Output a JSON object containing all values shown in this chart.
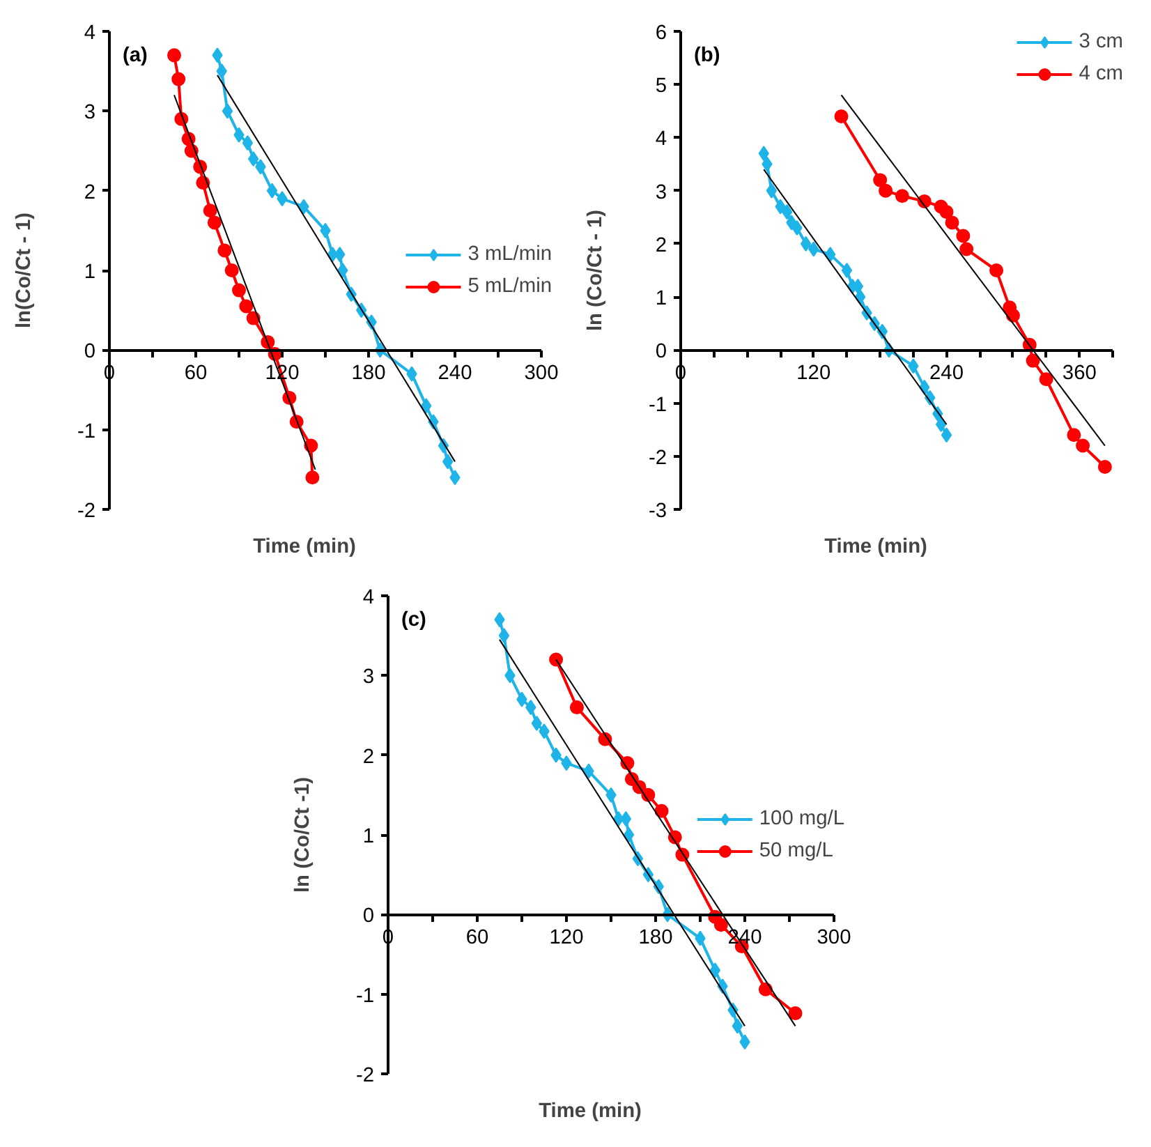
{
  "chart_data": [
    {
      "type": "line",
      "title": "(a)",
      "xlabel": "Time (min)",
      "ylabel": "ln(Co/Ct - 1)",
      "xlim": [
        0,
        300
      ],
      "ylim": [
        -2,
        4
      ],
      "xticks": [
        0,
        {
          "value": 30,
          "label": null
        },
        60,
        {
          "value": 90,
          "label": null
        },
        120,
        {
          "value": 150,
          "label": null
        },
        180,
        {
          "value": 210,
          "label": null
        },
        240,
        {
          "value": 270,
          "label": null
        },
        300
      ],
      "yticks": [
        -2,
        -1,
        0,
        1,
        2,
        3,
        4
      ],
      "grid": false,
      "legend": "right",
      "series": [
        {
          "name": "3 mL/min",
          "color": "#1fb4e8",
          "marker": "diamond",
          "x": [
            75,
            78,
            82,
            90,
            96,
            100,
            105,
            113,
            120,
            135,
            150,
            155,
            160,
            162,
            168,
            175,
            182,
            188,
            210,
            220,
            225,
            232,
            235,
            240
          ],
          "values": [
            3.7,
            3.5,
            3.0,
            2.7,
            2.6,
            2.4,
            2.3,
            2.0,
            1.9,
            1.8,
            1.5,
            1.2,
            1.2,
            1.0,
            0.7,
            0.5,
            0.35,
            0.0,
            -0.3,
            -0.7,
            -0.9,
            -1.2,
            -1.4,
            -1.6
          ]
        },
        {
          "name": "5 mL/min",
          "color": "#ff0000",
          "marker": "circle",
          "x": [
            45,
            48,
            50,
            55,
            57,
            63,
            65,
            70,
            73,
            80,
            85,
            90,
            95,
            100,
            110,
            115,
            125,
            130,
            140,
            141
          ],
          "values": [
            3.7,
            3.4,
            2.9,
            2.65,
            2.5,
            2.3,
            2.1,
            1.75,
            1.6,
            1.25,
            1.0,
            0.75,
            0.55,
            0.4,
            0.1,
            -0.05,
            -0.6,
            -0.9,
            -1.2,
            -1.6
          ]
        },
        {
          "color": "#000000",
          "marker": "none",
          "x": [
            75,
            240
          ],
          "values": [
            3.45,
            -1.4
          ]
        },
        {
          "color": "#000000",
          "marker": "none",
          "x": [
            45,
            143
          ],
          "values": [
            3.2,
            -1.5
          ]
        }
      ]
    },
    {
      "type": "line",
      "title": "(b)",
      "xlabel": "Time (min)",
      "ylabel": "ln (Co/Ct - 1)",
      "xlim": [
        0,
        390
      ],
      "ylim": [
        -3,
        6
      ],
      "xticks": [
        0,
        {
          "value": 30,
          "label": null
        },
        {
          "value": 60,
          "label": null
        },
        {
          "value": 90,
          "label": null
        },
        120,
        {
          "value": 150,
          "label": null
        },
        {
          "value": 180,
          "label": null
        },
        {
          "value": 210,
          "label": null
        },
        240,
        {
          "value": 270,
          "label": null
        },
        {
          "value": 300,
          "label": null
        },
        {
          "value": 330,
          "label": null
        },
        360,
        {
          "value": 390,
          "label": null
        }
      ],
      "yticks": [
        -3,
        -2,
        -1,
        0,
        1,
        2,
        3,
        4,
        5,
        6
      ],
      "grid": false,
      "legend": "top right",
      "series": [
        {
          "name": "3 cm",
          "color": "#1fb4e8",
          "marker": "diamond",
          "x": [
            75,
            78,
            82,
            90,
            96,
            100,
            105,
            113,
            120,
            135,
            150,
            155,
            160,
            162,
            168,
            175,
            182,
            188,
            210,
            220,
            225,
            232,
            235,
            240
          ],
          "values": [
            3.7,
            3.5,
            3.0,
            2.7,
            2.6,
            2.4,
            2.3,
            2.0,
            1.9,
            1.8,
            1.5,
            1.2,
            1.2,
            1.0,
            0.7,
            0.5,
            0.35,
            0.0,
            -0.3,
            -0.7,
            -0.9,
            -1.2,
            -1.4,
            -1.6
          ]
        },
        {
          "name": "4 cm",
          "color": "#ff0000",
          "marker": "circle",
          "x": [
            145,
            180,
            185,
            200,
            220,
            235,
            240,
            245,
            255,
            258,
            285,
            297,
            300,
            315,
            318,
            330,
            355,
            363,
            383
          ],
          "values": [
            4.4,
            3.2,
            3.0,
            2.9,
            2.8,
            2.7,
            2.6,
            2.4,
            2.15,
            1.9,
            1.5,
            0.8,
            0.65,
            0.1,
            -0.2,
            -0.55,
            -1.6,
            -1.8,
            -2.2
          ]
        },
        {
          "color": "#000000",
          "marker": "none",
          "x": [
            75,
            240
          ],
          "values": [
            3.4,
            -1.4
          ]
        },
        {
          "color": "#000000",
          "marker": "none",
          "x": [
            145,
            383
          ],
          "values": [
            4.8,
            -1.8
          ]
        }
      ]
    },
    {
      "type": "line",
      "title": "(c)",
      "xlabel": "Time (min)",
      "ylabel": "ln (Co/Ct -1)",
      "xlim": [
        0,
        300
      ],
      "ylim": [
        -2,
        4
      ],
      "xticks": [
        0,
        {
          "value": 30,
          "label": null
        },
        60,
        {
          "value": 90,
          "label": null
        },
        120,
        {
          "value": 150,
          "label": null
        },
        180,
        {
          "value": 210,
          "label": null
        },
        240,
        {
          "value": 270,
          "label": null
        },
        300
      ],
      "yticks": [
        -2,
        -1,
        0,
        1,
        2,
        3,
        4
      ],
      "grid": false,
      "legend": "right",
      "series": [
        {
          "name": "100 mg/L",
          "color": "#1fb4e8",
          "marker": "diamond",
          "x": [
            75,
            78,
            82,
            90,
            96,
            100,
            105,
            113,
            120,
            135,
            150,
            155,
            160,
            162,
            168,
            175,
            182,
            188,
            210,
            220,
            225,
            232,
            235,
            240
          ],
          "values": [
            3.7,
            3.5,
            3.0,
            2.7,
            2.6,
            2.4,
            2.3,
            2.0,
            1.9,
            1.8,
            1.5,
            1.2,
            1.2,
            1.0,
            0.7,
            0.5,
            0.35,
            0.0,
            -0.3,
            -0.7,
            -0.9,
            -1.2,
            -1.4,
            -1.6
          ]
        },
        {
          "name": "50 mg/L",
          "color": "#ff0000",
          "marker": "circle",
          "x": [
            113,
            127,
            146,
            161,
            164,
            169,
            175,
            184,
            193,
            198,
            220,
            224,
            238,
            254,
            274
          ],
          "values": [
            3.2,
            2.6,
            2.2,
            1.9,
            1.7,
            1.6,
            1.5,
            1.3,
            0.97,
            0.75,
            -0.03,
            -0.13,
            -0.4,
            -0.94,
            -1.24
          ]
        },
        {
          "color": "#000000",
          "marker": "none",
          "x": [
            75,
            240
          ],
          "values": [
            3.45,
            -1.4
          ]
        },
        {
          "color": "#000000",
          "marker": "none",
          "x": [
            113,
            274
          ],
          "values": [
            3.2,
            -1.4
          ]
        }
      ]
    }
  ]
}
